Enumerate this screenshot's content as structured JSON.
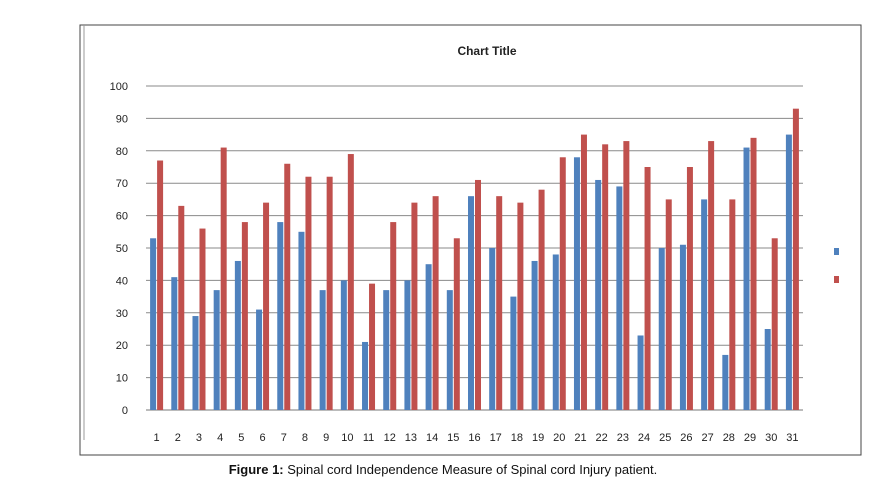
{
  "chart_data": {
    "type": "bar",
    "title": "Chart Title",
    "xlabel": "",
    "ylabel": "",
    "ylim": [
      0,
      100
    ],
    "yticks": [
      0,
      10,
      20,
      30,
      40,
      50,
      60,
      70,
      80,
      90,
      100
    ],
    "categories": [
      "1",
      "2",
      "3",
      "4",
      "5",
      "6",
      "7",
      "8",
      "9",
      "10",
      "11",
      "12",
      "13",
      "14",
      "15",
      "16",
      "17",
      "18",
      "19",
      "20",
      "21",
      "22",
      "23",
      "24",
      "25",
      "26",
      "27",
      "28",
      "29",
      "30",
      "31"
    ],
    "series": [
      {
        "color": "#4f81bd",
        "values": [
          53,
          41,
          29,
          37,
          46,
          31,
          58,
          55,
          37,
          40,
          21,
          37,
          40,
          45,
          37,
          66,
          50,
          35,
          46,
          48,
          78,
          71,
          69,
          23,
          50,
          51,
          65,
          17,
          81,
          25,
          85
        ]
      },
      {
        "color": "#c0504d",
        "values": [
          77,
          63,
          56,
          81,
          58,
          64,
          76,
          72,
          72,
          79,
          39,
          58,
          64,
          66,
          53,
          71,
          66,
          64,
          68,
          78,
          85,
          82,
          83,
          75,
          65,
          75,
          83,
          65,
          84,
          53,
          93
        ]
      }
    ],
    "grid": true,
    "legend": "right"
  },
  "caption": {
    "label": "Figure 1:",
    "text": " Spinal cord Independence Measure of Spinal cord Injury patient."
  }
}
